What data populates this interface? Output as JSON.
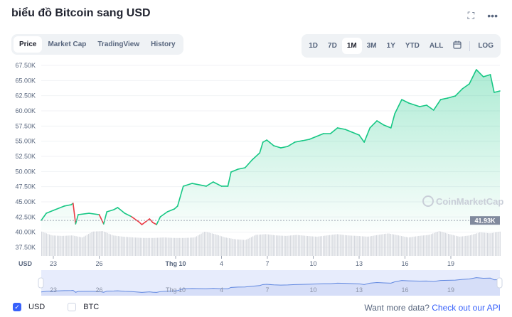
{
  "header": {
    "title": "biểu đồ Bitcoin sang USD",
    "fullscreen_icon": "expand-icon",
    "more_icon": "ellipsis-icon"
  },
  "tabs": [
    {
      "label": "Price",
      "active": true
    },
    {
      "label": "Market Cap"
    },
    {
      "label": "TradingView"
    },
    {
      "label": "History"
    }
  ],
  "ranges": [
    {
      "label": "1D"
    },
    {
      "label": "7D"
    },
    {
      "label": "1M",
      "active": true
    },
    {
      "label": "3M"
    },
    {
      "label": "1Y"
    },
    {
      "label": "YTD"
    },
    {
      "label": "ALL"
    }
  ],
  "calendar_icon": "calendar-icon",
  "log_label": "LOG",
  "watermark": "CoinMarketCap",
  "chart_data": {
    "type": "area",
    "y_ticks": [
      "67.50K",
      "65.00K",
      "62.50K",
      "60.00K",
      "57.50K",
      "55.00K",
      "52.50K",
      "50.00K",
      "47.50K",
      "45.00K",
      "42.50K",
      "40.00K",
      "37.50K"
    ],
    "y_values": [
      67500,
      65000,
      62500,
      60000,
      57500,
      55000,
      52500,
      50000,
      47500,
      45000,
      42500,
      40000,
      37500
    ],
    "x_ticks": [
      "23",
      "26",
      "Thg 10",
      "4",
      "7",
      "10",
      "13",
      "16",
      "19"
    ],
    "x_tick_dates": [
      "09-23",
      "09-26",
      "10-01",
      "10-04",
      "10-07",
      "10-10",
      "10-13",
      "10-16",
      "10-19"
    ],
    "y_unit_label": "USD",
    "reference_price": 41930,
    "reference_label": "41.93K",
    "colors": {
      "up": "#16c784",
      "down": "#ea3943",
      "nav_line": "#6188e0",
      "nav_fill": "#e7ecfc"
    },
    "price": [
      [
        "09-22 05",
        41950
      ],
      [
        "09-22 13",
        43120
      ],
      [
        "09-23 00",
        43590
      ],
      [
        "09-23 17",
        44300
      ],
      [
        "09-24 04",
        44530
      ],
      [
        "09-24 07",
        44760
      ],
      [
        "09-24 11",
        41360
      ],
      [
        "09-24 15",
        42890
      ],
      [
        "09-25 08",
        43120
      ],
      [
        "09-26 00",
        42890
      ],
      [
        "09-26 07",
        41360
      ],
      [
        "09-26 12",
        43360
      ],
      [
        "09-26 23",
        43710
      ],
      [
        "09-27 05",
        44060
      ],
      [
        "09-27 16",
        43120
      ],
      [
        "09-28 03",
        42540
      ],
      [
        "09-28 14",
        41720
      ],
      [
        "09-28 19",
        41250
      ],
      [
        "09-29 01",
        41720
      ],
      [
        "09-29 07",
        42190
      ],
      [
        "09-29 12",
        41600
      ],
      [
        "09-29 18",
        41250
      ],
      [
        "09-30 00",
        42540
      ],
      [
        "09-30 11",
        43360
      ],
      [
        "09-30 22",
        43830
      ],
      [
        "10-01 03",
        44290
      ],
      [
        "10-01 12",
        47580
      ],
      [
        "10-02 02",
        48040
      ],
      [
        "10-03 00",
        47580
      ],
      [
        "10-03 11",
        48280
      ],
      [
        "10-04 00",
        47580
      ],
      [
        "10-04 10",
        47580
      ],
      [
        "10-04 15",
        49920
      ],
      [
        "10-05 02",
        50390
      ],
      [
        "10-05 13",
        50620
      ],
      [
        "10-06 00",
        51910
      ],
      [
        "10-06 12",
        53080
      ],
      [
        "10-06 17",
        54840
      ],
      [
        "10-06 23",
        55190
      ],
      [
        "10-07 10",
        54260
      ],
      [
        "10-07 21",
        53900
      ],
      [
        "10-08 08",
        54140
      ],
      [
        "10-08 19",
        54840
      ],
      [
        "10-09 07",
        55080
      ],
      [
        "10-09 18",
        55310
      ],
      [
        "10-10 05",
        55780
      ],
      [
        "10-10 16",
        56250
      ],
      [
        "10-11 03",
        56250
      ],
      [
        "10-11 14",
        57190
      ],
      [
        "10-12 02",
        56950
      ],
      [
        "10-12 13",
        56480
      ],
      [
        "10-13 00",
        56020
      ],
      [
        "10-13 08",
        54840
      ],
      [
        "10-13 17",
        57190
      ],
      [
        "10-14 04",
        58360
      ],
      [
        "10-14 15",
        57650
      ],
      [
        "10-15 02",
        57190
      ],
      [
        "10-15 08",
        59530
      ],
      [
        "10-15 19",
        61870
      ],
      [
        "10-16 06",
        61290
      ],
      [
        "10-16 23",
        60700
      ],
      [
        "10-17 10",
        60940
      ],
      [
        "10-17 21",
        60120
      ],
      [
        "10-18 08",
        61870
      ],
      [
        "10-18 19",
        62110
      ],
      [
        "10-19 07",
        62460
      ],
      [
        "10-19 18",
        63630
      ],
      [
        "10-20 05",
        64450
      ],
      [
        "10-20 16",
        66800
      ],
      [
        "10-21 03",
        65630
      ],
      [
        "10-21 14",
        65980
      ],
      [
        "10-21 20",
        63050
      ],
      [
        "10-22 05",
        63280
      ]
    ],
    "volume_relative": [
      0.95,
      0.8,
      0.78,
      0.8,
      0.72,
      0.95,
      0.97,
      0.8,
      0.75,
      0.72,
      0.7,
      0.7,
      0.72,
      0.7,
      0.7,
      0.72,
      0.95,
      0.85,
      0.72,
      0.65,
      0.62,
      0.82,
      0.85,
      0.8,
      0.78,
      0.82,
      0.78,
      0.75,
      0.8,
      0.85,
      0.8,
      0.78,
      0.75,
      0.82,
      0.88,
      0.8,
      0.72,
      0.78,
      0.82,
      0.97,
      0.85,
      0.75,
      0.8,
      0.92,
      0.88,
      0.95
    ]
  },
  "footer": {
    "usd_label": "USD",
    "btc_label": "BTC",
    "more_text": "Want more data?",
    "more_link": "Check out our API"
  }
}
